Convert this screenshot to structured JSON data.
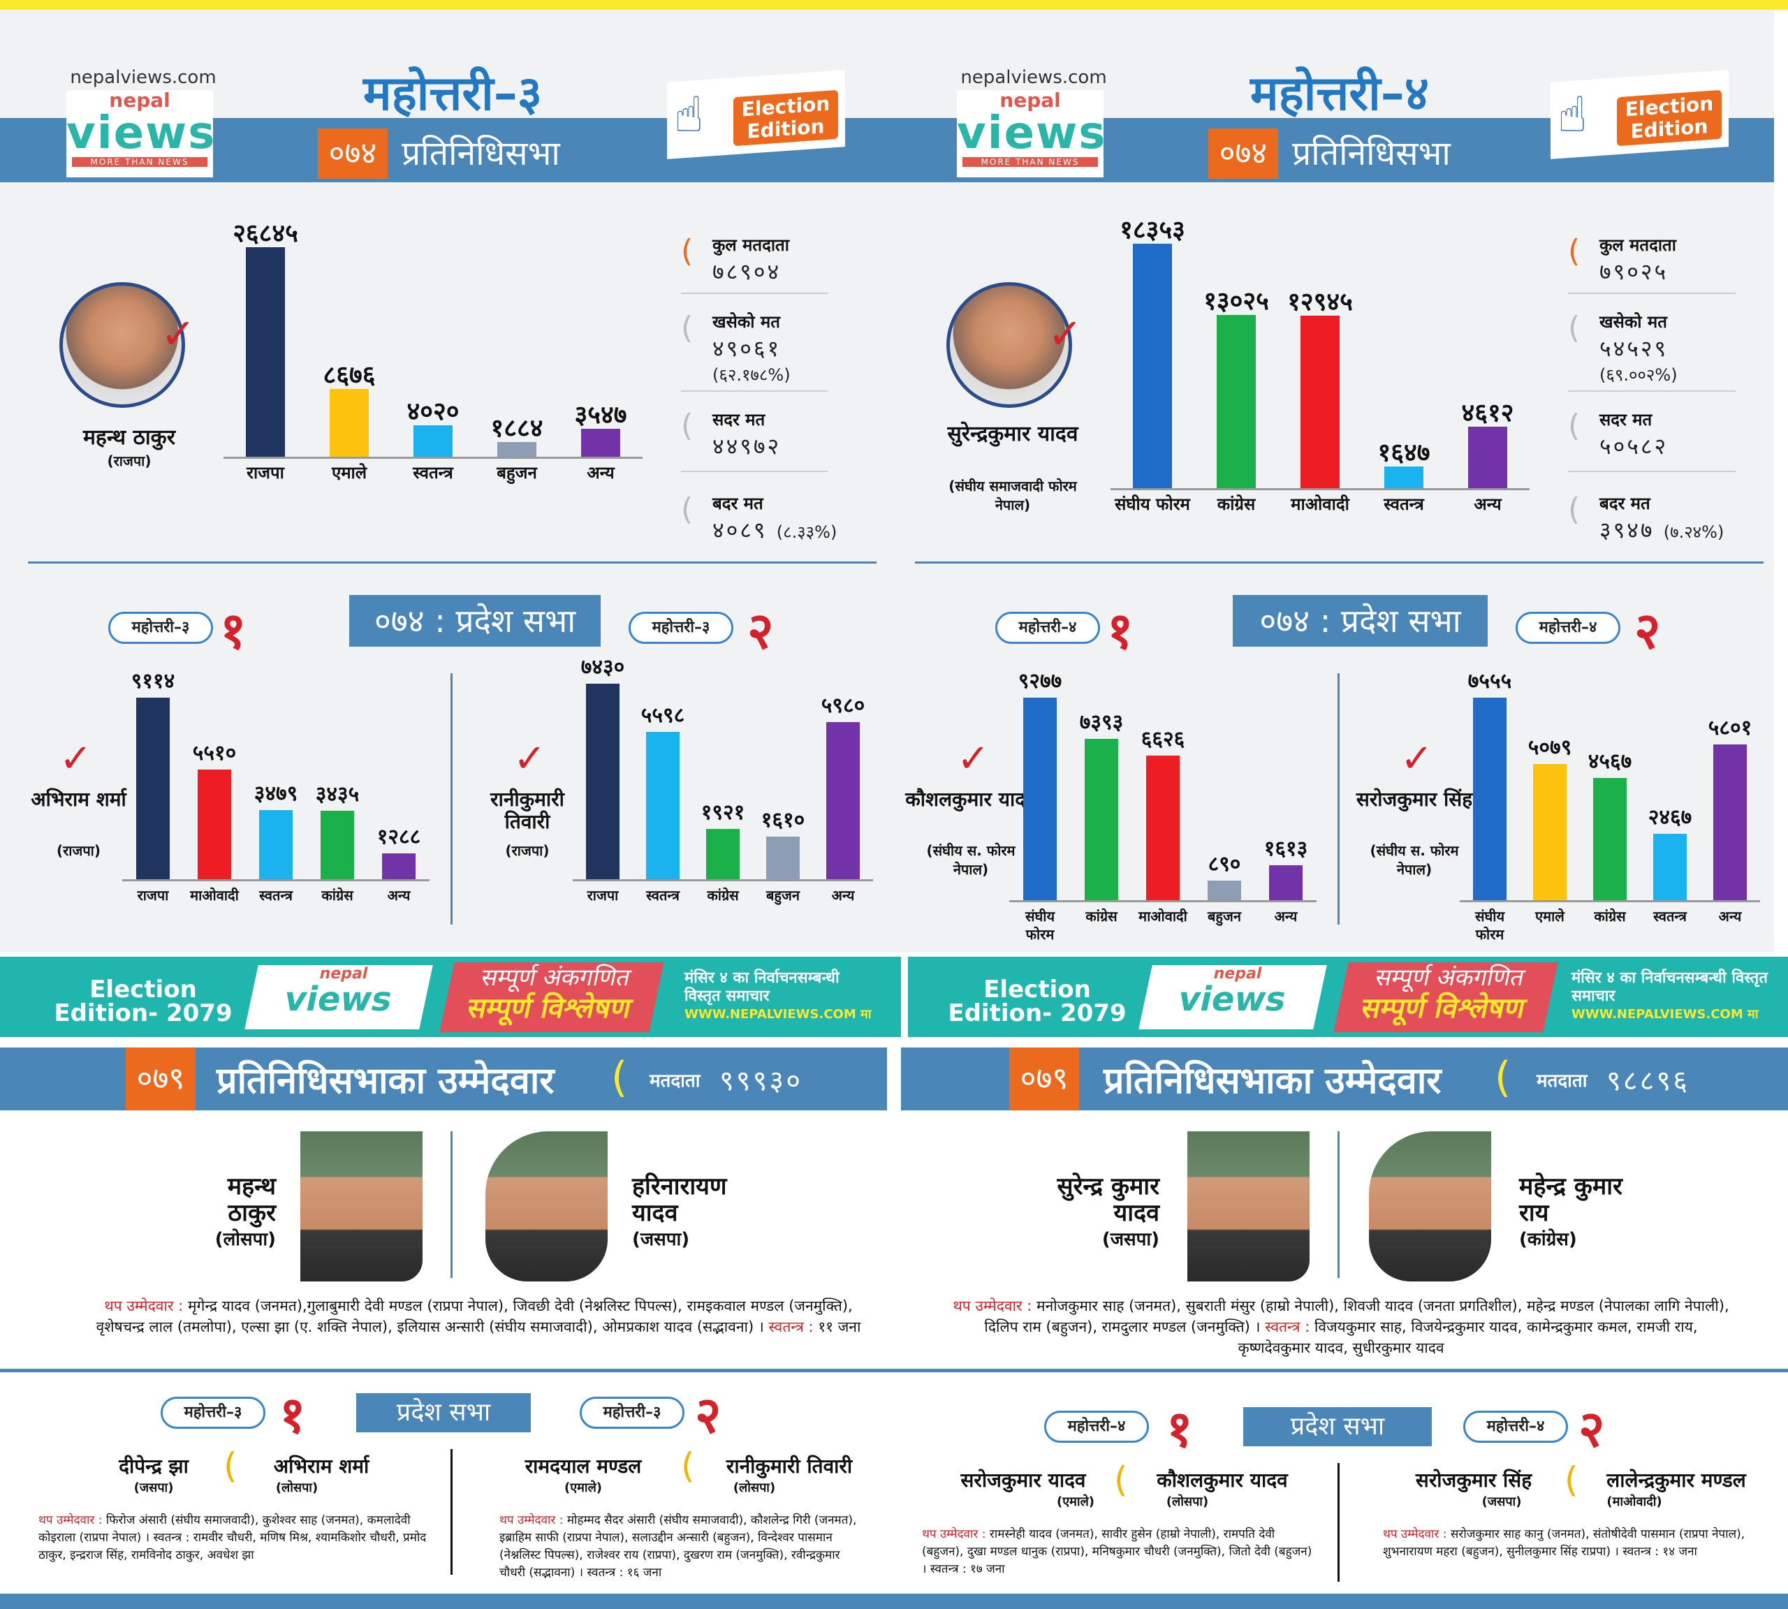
{
  "site": "nepalviews.com",
  "logo": {
    "nepal": "nepal",
    "views": "views",
    "tag": "MORE THAN NEWS"
  },
  "election_badge": "Election Edition",
  "year_074": "०७४",
  "pratinidhi_label": "प्रतिनिधिसभा",
  "pradesh_label_074": "०७४ : प्रदेश सभा",
  "left": {
    "title": "महोत्तरी–३",
    "winner": {
      "name": "महन्थ ठाकुर",
      "party": "(राजपा)"
    },
    "stats": {
      "voters_label": "कुल मतदाता",
      "voters": "७८९०४",
      "cast_label": "खसेको मत",
      "cast": "४९०६१",
      "cast_pct": "(६२.१७८%)",
      "valid_label": "सदर मत",
      "valid": "४४९७२",
      "invalid_label": "बदर मत",
      "invalid": "४०८९",
      "invalid_pct": "(८.३३%)"
    },
    "pradesh1": {
      "pill": "महोत्तरी–३",
      "num": "१",
      "winner_name": "अभिराम शर्मा",
      "winner_party": "(राजपा)"
    },
    "pradesh2": {
      "pill": "महोत्तरी–३",
      "num": "२",
      "winner_name": "रानीकुमारी तिवारी",
      "winner_party": "(राजपा)"
    }
  },
  "right": {
    "title": "महोत्तरी–४",
    "winner": {
      "name": "सुरेन्द्रकुमार यादव",
      "party": "(संघीय समाजवादी फोरम नेपाल)"
    },
    "stats": {
      "voters_label": "कुल मतदाता",
      "voters": "७९०२५",
      "cast_label": "खसेको मत",
      "cast": "५४५२९",
      "cast_pct": "(६९.००२%)",
      "valid_label": "सदर मत",
      "valid": "५०५८२",
      "invalid_label": "बदर मत",
      "invalid": "३९४७",
      "invalid_pct": "(७.२४%)"
    },
    "pradesh1": {
      "pill": "महोत्तरी–४",
      "num": "१",
      "winner_name": "कौशलकुमार यादव",
      "winner_party": "(संघीय स. फोरम नेपाल)"
    },
    "pradesh2": {
      "pill": "महोत्तरी–४",
      "num": "२",
      "winner_name": "सरोजकुमार सिंह",
      "winner_party": "(संघीय स. फोरम नेपाल)"
    }
  },
  "chart_data": [
    {
      "type": "bar",
      "title": "महोत्तरी–३ प्रतिनिधिसभा ०७४",
      "categories": [
        "राजपा",
        "एमाले",
        "स्वतन्त्र",
        "बहुजन",
        "अन्य"
      ],
      "values": [
        26845,
        8676,
        4020,
        1884,
        3547
      ],
      "labels": [
        "२६८४५",
        "८६७६",
        "४०२०",
        "१८८४",
        "३५४७"
      ],
      "colors": [
        "#1f3560",
        "#fdc20e",
        "#1ab3ef",
        "#8c9db5",
        "#7333a8"
      ]
    },
    {
      "type": "bar",
      "title": "महोत्तरी–४ प्रतिनिधिसभा ०७४",
      "categories": [
        "संघीय फोरम",
        "कांग्रेस",
        "माओवादी",
        "स्वतन्त्र",
        "अन्य"
      ],
      "values": [
        18353,
        13025,
        12945,
        1647,
        4612
      ],
      "labels": [
        "१८३५३",
        "१३०२५",
        "१२९४५",
        "१६४७",
        "४६१२"
      ],
      "colors": [
        "#1f6cc8",
        "#1bb04a",
        "#ee1d23",
        "#1ab3ef",
        "#7333a8"
      ]
    },
    {
      "type": "bar",
      "title": "महोत्तरी–३ प्रदेश १",
      "categories": [
        "राजपा",
        "माओवादी",
        "स्वतन्त्र",
        "कांग्रेस",
        "अन्य"
      ],
      "values": [
        9114,
        5510,
        3479,
        3435,
        1288
      ],
      "labels": [
        "९११४",
        "५५१०",
        "३४७९",
        "३४३५",
        "१२८८"
      ],
      "colors": [
        "#1f3560",
        "#ee1d23",
        "#1ab3ef",
        "#1bb04a",
        "#7333a8"
      ]
    },
    {
      "type": "bar",
      "title": "महोत्तरी–३ प्रदेश २",
      "categories": [
        "राजपा",
        "स्वतन्त्र",
        "कांग्रेस",
        "बहुजन",
        "अन्य"
      ],
      "values": [
        7430,
        5598,
        1921,
        1610,
        5980
      ],
      "labels": [
        "७४३०",
        "५५९८",
        "१९२१",
        "१६१०",
        "५९८०"
      ],
      "colors": [
        "#1f3560",
        "#1ab3ef",
        "#1bb04a",
        "#8c9db5",
        "#7333a8"
      ]
    },
    {
      "type": "bar",
      "title": "महोत्तरी–४ प्रदेश १",
      "categories": [
        "संघीय फोरम",
        "कांग्रेस",
        "माओवादी",
        "बहुजन",
        "अन्य"
      ],
      "values": [
        9277,
        7393,
        6626,
        890,
        1613
      ],
      "labels": [
        "९२७७",
        "७३९३",
        "६६२६",
        "८९०",
        "१६१३"
      ],
      "colors": [
        "#1f6cc8",
        "#1bb04a",
        "#ee1d23",
        "#8c9db5",
        "#7333a8"
      ]
    },
    {
      "type": "bar",
      "title": "महोत्तरी–४ प्रदेश २",
      "categories": [
        "संघीय फोरम",
        "एमाले",
        "कांग्रेस",
        "स्वतन्त्र",
        "अन्य"
      ],
      "values": [
        7555,
        5079,
        4567,
        2467,
        5801
      ],
      "labels": [
        "७५५५",
        "५०७९",
        "४५६७",
        "२४६७",
        "५८०१"
      ],
      "colors": [
        "#1f6cc8",
        "#fdc20e",
        "#1bb04a",
        "#1ab3ef",
        "#7333a8"
      ]
    }
  ],
  "banner": {
    "ed": "Election Edition- 2079",
    "red_a": "सम्पूर्ण अंकगणित",
    "red_b": "सम्पूर्ण विश्लेषण",
    "info": "मंसिर ४ का निर्वाचनसम्बन्धी विस्तृत समाचार",
    "url": "WWW.NEPALVIEWS.COM मा"
  },
  "y079": "०७९",
  "candidates_label": "प्रतिनिधिसभाका उम्मेदवार",
  "voters_word": "मतदाता",
  "c079_left": {
    "voters": "९९९३०",
    "c1": {
      "name": "महन्थ ठाकुर",
      "party": "(लोसपा)"
    },
    "c2": {
      "name": "हरिनारायण यादव",
      "party": "(जसपा)"
    },
    "others_label": "थप उम्मेदवार :",
    "others": "मृगेन्द्र यादव (जनमत),गुलाबुमारी देवी मण्डल (राप्रपा नेपाल), जिवछी देवी (नेश्नलिस्ट पिपल्स), रामइकवाल मण्डल (जनमुक्ति), वृशेषचन्द्र लाल (तमलोपा), एल्सा झा (ए. शक्ति नेपाल), इलियास अन्सारी (संघीय समाजवादी), ओमप्रकाश यादव (सद्भावना) ।",
    "ind_label": "स्वतन्त्र :",
    "ind": "११ जना",
    "pradesh_label": "प्रदेश सभा",
    "p1": {
      "pill": "महोत्तरी–३",
      "num": "१",
      "a_name": "दीपेन्द्र झा",
      "a_party": "(जसपा)",
      "b_name": "अभिराम शर्मा",
      "b_party": "(लोसपा)",
      "others": "फिरोज अंसारी (संघीय समाजवादी), कुशेश्वर साह (जनमत), कमलादेवी कोइराला (राप्रपा नेपाल) । स्वतन्त्र : रामवीर चौधरी, मणिष मिश्र, श्यामकिशोर चौधरी, प्रमोद ठाकुर, इन्द्रराज सिंह, रामविनोद ठाकुर, अवधेश झा"
    },
    "p2": {
      "pill": "महोत्तरी–३",
      "num": "२",
      "a_name": "रामदयाल मण्डल",
      "a_party": "(एमाले)",
      "b_name": "रानीकुमारी तिवारी",
      "b_party": "(लोसपा)",
      "others": "मोहम्मद सैदर अंसारी (संघीय समाजवादी), कौशलेन्द्र गिरी (जनमत), इब्राहिम साफी (राप्रपा नेपाल), सलाउद्दीन अन्सारी (बहुजन), विन्देश्वर पासमान (नेश्नलिस्ट पिपल्स), राजेश्वर राय (राप्रपा), दुखरण राम (जनमुक्ति), रवीन्द्रकुमार चौधरी (सद्भावना) । स्वतन्त्र : १६ जना"
    }
  },
  "c079_right": {
    "voters": "९८८९६",
    "c1": {
      "name": "सुरेन्द्र कुमार यादव",
      "party": "(जसपा)"
    },
    "c2": {
      "name": "महेन्द्र कुमार राय",
      "party": "(कांग्रेस)"
    },
    "others_label": "थप उम्मेदवार :",
    "others": "मनोजकुमार साह (जनमत), सुबराती मंसुर (हाम्रो नेपाली), शिवजी यादव (जनता प्रगतिशील), महेन्द्र मण्डल (नेपालका लागि नेपाली), दिलिप राम (बहुजन), रामदुलार मण्डल (जनमुक्ति) ।",
    "ind_label": "स्वतन्त्र :",
    "ind": "विजयकुमार साह, विजयेन्द्रकुमार यादव, कामेन्द्रकुमार कमल, रामजी राय, कृष्णदेवकुमार यादव, सुधीरकुमार यादव",
    "pradesh_label": "प्रदेश सभा",
    "p1": {
      "pill": "महोत्तरी–४",
      "num": "१",
      "a_name": "सरोजकुमार यादव",
      "a_party": "(एमाले)",
      "b_name": "कौशलकुमार यादव",
      "b_party": "(लोसपा)",
      "others": "रामस्नेही यादव (जनमत), सावीर हुसेन (हाम्रो नेपाली), रामपति देवी (बहुजन), दुखा मण्डल धानुक (राप्रपा), मनिषकुमार चौधरी (जनमुक्ति), जितो देवी (बहुजन) । स्वतन्त्र : १७ जना"
    },
    "p2": {
      "pill": "महोत्तरी–४",
      "num": "२",
      "a_name": "सरोजकुमार सिंह",
      "a_party": "(जसपा)",
      "b_name": "लालेन्द्रकुमार मण्डल",
      "b_party": "(माओवादी)",
      "others": "सरोजकुमार साह कानु (जनमत), संतोषीदेवी पासमान (राप्रपा नेपाल), शुभनारायण महरा (बहुजन), सुनीलकुमार सिंह राप्रपा) । स्वतन्त्र : १४ जना"
    }
  }
}
